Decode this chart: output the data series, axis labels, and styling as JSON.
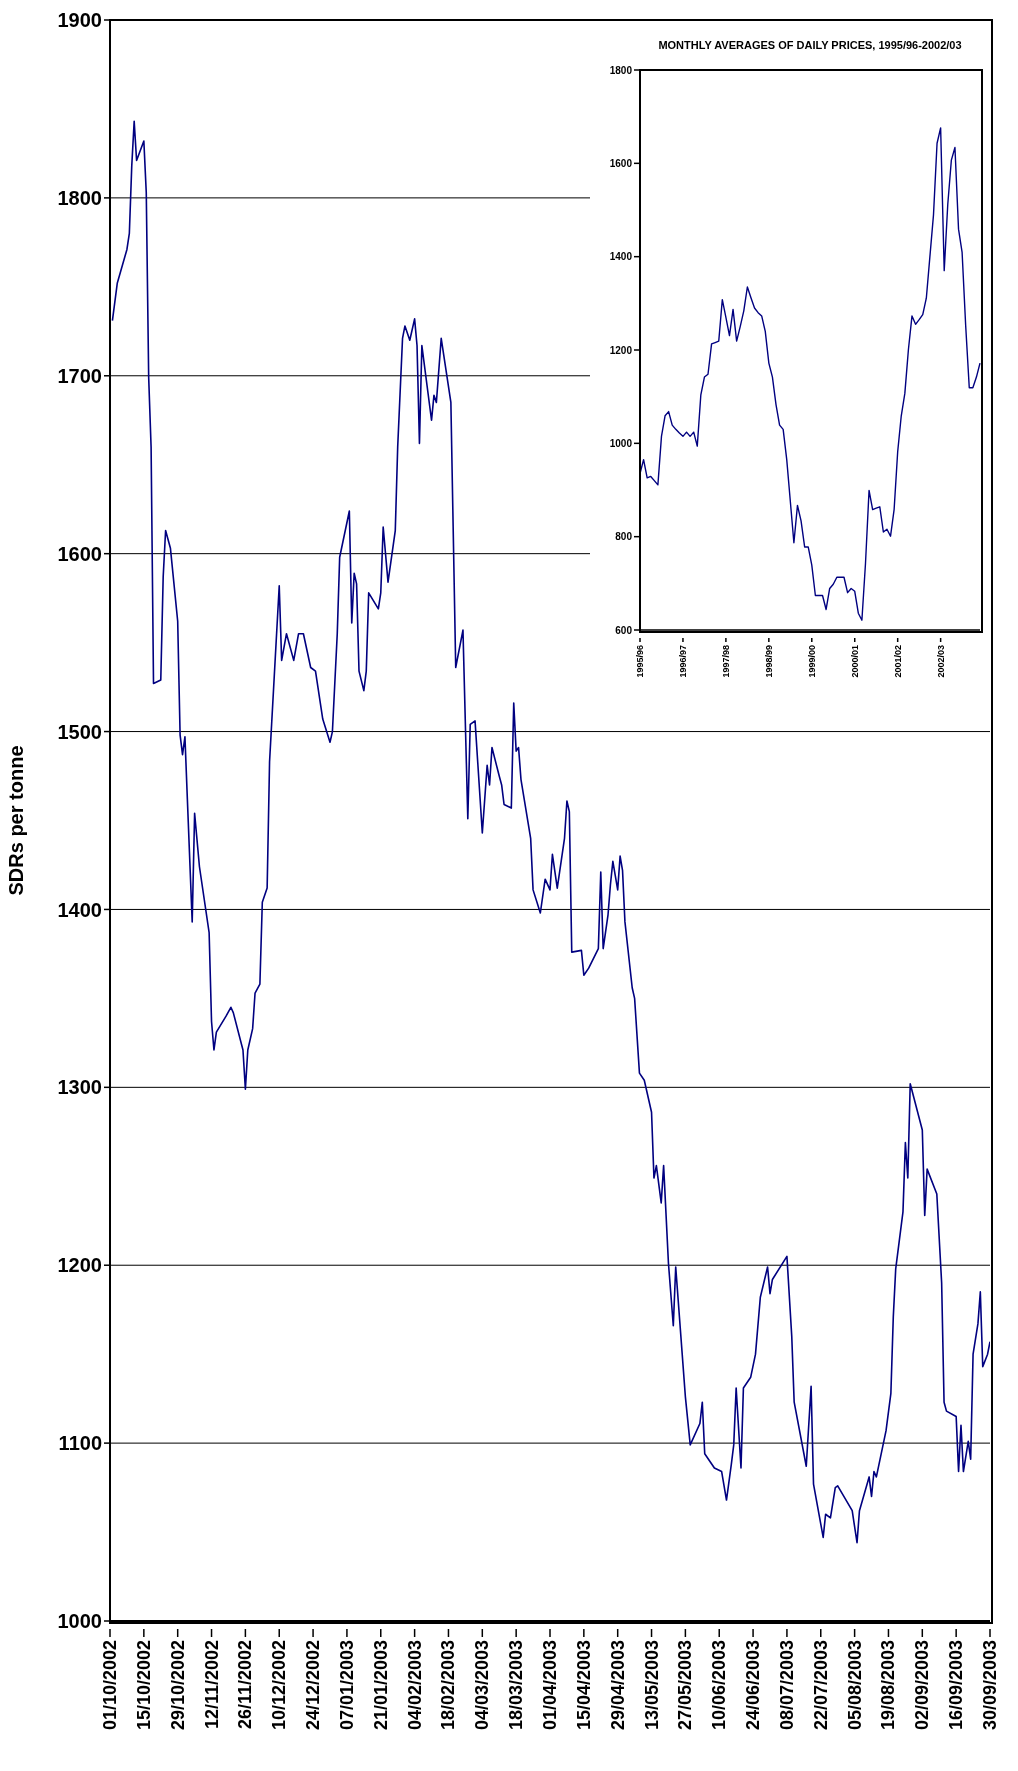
{
  "chart_data": [
    {
      "type": "line",
      "ylabel": "SDRs per tonne",
      "color": "#000080",
      "grid": "y",
      "xlim": [
        "2002-10-01",
        "2003-09-30"
      ],
      "xticks": [
        {
          "value": "2002-10-01",
          "label": "01/10/2002"
        },
        {
          "value": "2002-10-15",
          "label": "15/10/2002"
        },
        {
          "value": "2002-10-29",
          "label": "29/10/2002"
        },
        {
          "value": "2002-11-12",
          "label": "12/11/2002"
        },
        {
          "value": "2002-11-26",
          "label": "26/11/2002"
        },
        {
          "value": "2002-12-10",
          "label": "10/12/2002"
        },
        {
          "value": "2002-12-24",
          "label": "24/12/2002"
        },
        {
          "value": "2003-01-07",
          "label": "07/01/2003"
        },
        {
          "value": "2003-01-21",
          "label": "21/01/2003"
        },
        {
          "value": "2003-02-04",
          "label": "04/02/2003"
        },
        {
          "value": "2003-02-18",
          "label": "18/02/2003"
        },
        {
          "value": "2003-03-04",
          "label": "04/03/2003"
        },
        {
          "value": "2003-03-18",
          "label": "18/03/2003"
        },
        {
          "value": "2003-04-01",
          "label": "01/04/2003"
        },
        {
          "value": "2003-04-15",
          "label": "15/04/2003"
        },
        {
          "value": "2003-04-29",
          "label": "29/04/2003"
        },
        {
          "value": "2003-05-13",
          "label": "13/05/2003"
        },
        {
          "value": "2003-05-27",
          "label": "27/05/2003"
        },
        {
          "value": "2003-06-10",
          "label": "10/06/2003"
        },
        {
          "value": "2003-06-24",
          "label": "24/06/2003"
        },
        {
          "value": "2003-07-08",
          "label": "08/07/2003"
        },
        {
          "value": "2003-07-22",
          "label": "22/07/2003"
        },
        {
          "value": "2003-08-05",
          "label": "05/08/2003"
        },
        {
          "value": "2003-08-19",
          "label": "19/08/2003"
        },
        {
          "value": "2003-09-02",
          "label": "02/09/2003"
        },
        {
          "value": "2003-09-16",
          "label": "16/09/2003"
        },
        {
          "value": "2003-09-30",
          "label": "30/09/2003"
        }
      ],
      "ylim": [
        1000,
        1900
      ],
      "yticks": [
        1000,
        1100,
        1200,
        1300,
        1400,
        1500,
        1600,
        1700,
        1800,
        1900
      ],
      "x": [
        "2002-10-02",
        "2002-10-04",
        "2002-10-08",
        "2002-10-09",
        "2002-10-10",
        "2002-10-11",
        "2002-10-12",
        "2002-10-15",
        "2002-10-16",
        "2002-10-17",
        "2002-10-18",
        "2002-10-19",
        "2002-10-22",
        "2002-10-23",
        "2002-10-24",
        "2002-10-26",
        "2002-10-29",
        "2002-10-30",
        "2002-10-31",
        "2002-11-01",
        "2002-11-02",
        "2002-11-04",
        "2002-11-05",
        "2002-11-07",
        "2002-11-11",
        "2002-11-12",
        "2002-11-13",
        "2002-11-14",
        "2002-11-18",
        "2002-11-20",
        "2002-11-21",
        "2002-11-25",
        "2002-11-26",
        "2002-11-27",
        "2002-11-29",
        "2002-11-30",
        "2002-12-02",
        "2002-12-03",
        "2002-12-05",
        "2002-12-06",
        "2002-12-10",
        "2002-12-11",
        "2002-12-13",
        "2002-12-16",
        "2002-12-18",
        "2002-12-20",
        "2002-12-23",
        "2002-12-25",
        "2002-12-28",
        "2002-12-31",
        "2003-01-01",
        "2003-01-03",
        "2003-01-04",
        "2003-01-08",
        "2003-01-09",
        "2003-01-10",
        "2003-01-11",
        "2003-01-12",
        "2003-01-14",
        "2003-01-15",
        "2003-01-16",
        "2003-01-20",
        "2003-01-21",
        "2003-01-22",
        "2003-01-24",
        "2003-01-27",
        "2003-01-28",
        "2003-01-30",
        "2003-01-31",
        "2003-02-02",
        "2003-02-04",
        "2003-02-05",
        "2003-02-06",
        "2003-02-07",
        "2003-02-11",
        "2003-02-12",
        "2003-02-13",
        "2003-02-15",
        "2003-02-17",
        "2003-02-19",
        "2003-02-21",
        "2003-02-24",
        "2003-02-26",
        "2003-02-27",
        "2003-03-01",
        "2003-03-04",
        "2003-03-06",
        "2003-03-07",
        "2003-03-08",
        "2003-03-11",
        "2003-03-12",
        "2003-03-13",
        "2003-03-16",
        "2003-03-17",
        "2003-03-18",
        "2003-03-19",
        "2003-03-20",
        "2003-03-24",
        "2003-03-25",
        "2003-03-28",
        "2003-03-30",
        "2003-04-01",
        "2003-04-02",
        "2003-04-04",
        "2003-04-07",
        "2003-04-08",
        "2003-04-09",
        "2003-04-10",
        "2003-04-14",
        "2003-04-15",
        "2003-04-17",
        "2003-04-21",
        "2003-04-22",
        "2003-04-23",
        "2003-04-25",
        "2003-04-26",
        "2003-04-27",
        "2003-04-29",
        "2003-04-30",
        "2003-05-01",
        "2003-05-02",
        "2003-05-05",
        "2003-05-06",
        "2003-05-08",
        "2003-05-10",
        "2003-05-13",
        "2003-05-14",
        "2003-05-15",
        "2003-05-17",
        "2003-05-18",
        "2003-05-20",
        "2003-05-22",
        "2003-05-23",
        "2003-05-27",
        "2003-05-29",
        "2003-06-02",
        "2003-06-03",
        "2003-06-04",
        "2003-06-08",
        "2003-06-11",
        "2003-06-13",
        "2003-06-15",
        "2003-06-16",
        "2003-06-17",
        "2003-06-19",
        "2003-06-20",
        "2003-06-23",
        "2003-06-25",
        "2003-06-27",
        "2003-06-30",
        "2003-07-01",
        "2003-07-02",
        "2003-07-08",
        "2003-07-10",
        "2003-07-11",
        "2003-07-16",
        "2003-07-18",
        "2003-07-19",
        "2003-07-23",
        "2003-07-24",
        "2003-07-26",
        "2003-07-28",
        "2003-07-29",
        "2003-08-04",
        "2003-08-06",
        "2003-08-07",
        "2003-08-11",
        "2003-08-12",
        "2003-08-13",
        "2003-08-14",
        "2003-08-18",
        "2003-08-20",
        "2003-08-21",
        "2003-08-22",
        "2003-08-25",
        "2003-08-26",
        "2003-08-27",
        "2003-08-28",
        "2003-09-02",
        "2003-09-03",
        "2003-09-04",
        "2003-09-08",
        "2003-09-10",
        "2003-09-11",
        "2003-09-12",
        "2003-09-16",
        "2003-09-17",
        "2003-09-18",
        "2003-09-19",
        "2003-09-21",
        "2003-09-22",
        "2003-09-23",
        "2003-09-25",
        "2003-09-26",
        "2003-09-27",
        "2003-09-29",
        "2003-09-30"
      ],
      "values": [
        1731,
        1752,
        1771,
        1780,
        1818,
        1843,
        1821,
        1832,
        1803,
        1699,
        1660,
        1527,
        1529,
        1587,
        1613,
        1603,
        1562,
        1498,
        1487,
        1497,
        1462,
        1393,
        1454,
        1424,
        1387,
        1337,
        1321,
        1331,
        1340,
        1345,
        1342,
        1321,
        1299,
        1321,
        1333,
        1353,
        1358,
        1404,
        1412,
        1483,
        1582,
        1540,
        1555,
        1540,
        1555,
        1555,
        1536,
        1534,
        1507,
        1494,
        1500,
        1555,
        1598,
        1624,
        1561,
        1589,
        1583,
        1534,
        1523,
        1534,
        1578,
        1569,
        1578,
        1615,
        1584,
        1613,
        1660,
        1721,
        1728,
        1720,
        1732,
        1717,
        1662,
        1717,
        1675,
        1689,
        1685,
        1721,
        1703,
        1685,
        1536,
        1557,
        1451,
        1504,
        1506,
        1443,
        1481,
        1470,
        1491,
        1475,
        1470,
        1459,
        1457,
        1516,
        1489,
        1491,
        1473,
        1440,
        1411,
        1398,
        1417,
        1411,
        1431,
        1412,
        1440,
        1461,
        1455,
        1376,
        1377,
        1363,
        1367,
        1378,
        1421,
        1378,
        1397,
        1414,
        1427,
        1411,
        1430,
        1422,
        1393,
        1356,
        1350,
        1308,
        1304,
        1286,
        1249,
        1256,
        1235,
        1256,
        1201,
        1166,
        1199,
        1126,
        1099,
        1111,
        1123,
        1094,
        1086,
        1084,
        1068,
        1088,
        1099,
        1131,
        1086,
        1131,
        1137,
        1150,
        1182,
        1199,
        1184,
        1192,
        1205,
        1160,
        1123,
        1087,
        1132,
        1077,
        1047,
        1060,
        1058,
        1075,
        1076,
        1062,
        1044,
        1062,
        1081,
        1070,
        1084,
        1081,
        1107,
        1128,
        1171,
        1198,
        1230,
        1269,
        1249,
        1302,
        1276,
        1228,
        1254,
        1240,
        1190,
        1123,
        1118,
        1115,
        1084,
        1110,
        1084,
        1101,
        1091,
        1150,
        1167,
        1185,
        1143,
        1150,
        1157
      ]
    },
    {
      "type": "line",
      "title": "MONTHLY AVERAGES OF DAILY PRICES, 1995/96-2002/03",
      "color": "#000080",
      "ylim": [
        600,
        1800
      ],
      "yticks": [
        600,
        800,
        1000,
        1200,
        1400,
        1600,
        1800
      ],
      "categories": [
        "1995/96",
        null,
        null,
        null,
        null,
        null,
        null,
        null,
        null,
        null,
        null,
        null,
        "1996/97",
        null,
        null,
        null,
        null,
        null,
        null,
        null,
        null,
        null,
        null,
        null,
        "1997/98",
        null,
        null,
        null,
        null,
        null,
        null,
        null,
        null,
        null,
        null,
        null,
        "1998/99",
        null,
        null,
        null,
        null,
        null,
        null,
        null,
        null,
        null,
        null,
        null,
        "1999/00",
        null,
        null,
        null,
        null,
        null,
        null,
        null,
        null,
        null,
        null,
        null,
        "2000/01",
        null,
        null,
        null,
        null,
        null,
        null,
        null,
        null,
        null,
        null,
        null,
        "2001/02",
        null,
        null,
        null,
        null,
        null,
        null,
        null,
        null,
        null,
        null,
        null,
        "2002/03",
        null,
        null,
        null,
        null,
        null,
        null,
        null,
        null,
        null,
        null,
        null
      ],
      "values": [
        935,
        965,
        926,
        929,
        920,
        911,
        1015,
        1059,
        1068,
        1039,
        1030,
        1022,
        1015,
        1024,
        1015,
        1024,
        994,
        1104,
        1142,
        1148,
        1213,
        1216,
        1219,
        1308,
        1270,
        1231,
        1287,
        1219,
        1250,
        1284,
        1335,
        1312,
        1290,
        1280,
        1273,
        1240,
        1172,
        1142,
        1083,
        1039,
        1030,
        965,
        876,
        787,
        867,
        834,
        778,
        778,
        739,
        674,
        674,
        674,
        644,
        689,
        698,
        713,
        713,
        713,
        680,
        689,
        683,
        636,
        621,
        742,
        899,
        858,
        861,
        864,
        810,
        816,
        801,
        858,
        982,
        1059,
        1107,
        1201,
        1273,
        1255,
        1265,
        1276,
        1311,
        1400,
        1489,
        1643,
        1676,
        1370,
        1513,
        1607,
        1634,
        1459,
        1409,
        1252,
        1119,
        1119,
        1142,
        1172
      ]
    }
  ]
}
